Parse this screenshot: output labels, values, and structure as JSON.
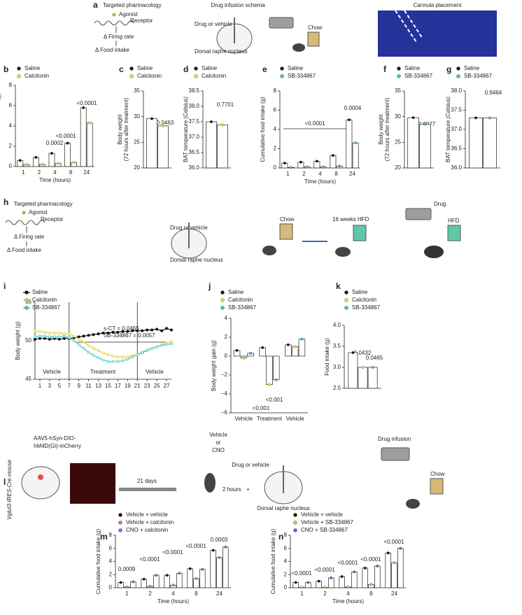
{
  "diagrams": {
    "a": {
      "label": "a",
      "pharmacology": {
        "title": "Targeted pharmacology",
        "agonist": "Agonist",
        "receptor": "Receptor",
        "firing": "Δ Firing rate",
        "food": "Δ Food intake"
      },
      "schema": {
        "title": "Drug infusion schema",
        "drug": "Drug or vehicle",
        "chow": "Chow",
        "region": "Dorsal raphe nucleus"
      },
      "cannula": "Cannula placement"
    },
    "h": {
      "label": "h",
      "pharmacology": {
        "title": "Targeted pharmacology",
        "agonist": "Agonist",
        "receptor": "Receptor",
        "firing": "Δ Firing rate",
        "food": "Δ Food intake"
      },
      "drug": "Drug or vehicle",
      "region": "Dorsal raphe nucleus",
      "chow": "Chow",
      "hfd_weeks": "16 weeks HFD",
      "drug2": "Drug",
      "hfd": "HFD"
    },
    "l": {
      "label": "l",
      "mouse": "Vglut3-IRES-Cre mouse",
      "virus": [
        "AAV5-hSyn-DIO-",
        "hM4D(Gi)-mCherry"
      ],
      "days": "21 days",
      "treatment": [
        "Vehicle",
        "or",
        "CNO"
      ],
      "wait": "2 hours",
      "plus": "+",
      "title": "Drug infusion",
      "drug": "Drug or vehicle",
      "chow": "Chow",
      "region": "Dorsal raphe nucleus"
    }
  },
  "chart_data": [
    {
      "type": "bar",
      "label": "b",
      "categories": [
        "1",
        "2",
        "4",
        "8",
        "24"
      ],
      "series": [
        {
          "name": "Saline",
          "color": "#111111",
          "values": [
            0.6,
            0.9,
            1.3,
            2.3,
            5.8
          ]
        },
        {
          "name": "Calcitonin",
          "color": "#f0e040",
          "values": [
            0.2,
            0.2,
            0.3,
            0.4,
            4.3
          ]
        }
      ],
      "ylim": [
        0,
        8
      ],
      "yticks": [
        0,
        2,
        4,
        6,
        8
      ],
      "ylabel": [
        "Cumulative food intake (g)"
      ],
      "xlabel": "Time (hours)",
      "annotations": [
        "0.0002",
        "<0.0001",
        "<0.0001"
      ]
    },
    {
      "type": "bar",
      "label": "c",
      "series": [
        {
          "name": "Saline",
          "color": "#111111",
          "values": [
            29.6
          ]
        },
        {
          "name": "Calcitonin",
          "color": "#f0e040",
          "values": [
            28.2
          ]
        }
      ],
      "ylim": [
        20,
        35
      ],
      "yticks": [
        20,
        25,
        30,
        35
      ],
      "ylabel": [
        "Body weight",
        "(72 hours after treatment)"
      ],
      "annotations": [
        "0.0463"
      ]
    },
    {
      "type": "bar",
      "label": "d",
      "series": [
        {
          "name": "Saline",
          "color": "#111111",
          "values": [
            37.5
          ]
        },
        {
          "name": "Calcitonin",
          "color": "#f0e040",
          "values": [
            37.4
          ]
        }
      ],
      "ylim": [
        36,
        38.5
      ],
      "yticks": [
        {
          "value": 36,
          "label": "36.0"
        },
        36.5,
        {
          "value": 37,
          "label": "37.0"
        },
        37.5,
        {
          "value": 38,
          "label": "38.0"
        },
        38.5
      ],
      "ylabel": [
        "BAT temperature (Celsius)"
      ],
      "annotations": [
        "0.7701"
      ]
    },
    {
      "type": "bar",
      "label": "e",
      "categories": [
        "1",
        "2",
        "4",
        "8",
        "24"
      ],
      "series": [
        {
          "name": "Saline",
          "color": "#111111",
          "values": [
            0.5,
            0.6,
            0.7,
            1.3,
            5.0
          ]
        },
        {
          "name": "SB-334867",
          "color": "#40c8c8",
          "values": [
            0.05,
            0.1,
            0.1,
            0.2,
            2.6
          ]
        }
      ],
      "ylim": [
        0,
        8
      ],
      "yticks": [
        0,
        2,
        4,
        6,
        8
      ],
      "ylabel": [
        "Cumulative food intake (g)"
      ],
      "xlabel": "Time (hours)",
      "annotations": [
        "<0.0001",
        "0.0004"
      ]
    },
    {
      "type": "bar",
      "label": "f",
      "series": [
        {
          "name": "Saline",
          "color": "#111111",
          "values": [
            29.8
          ]
        },
        {
          "name": "SB-334867",
          "color": "#40c8c8",
          "values": [
            28.5
          ]
        }
      ],
      "ylim": [
        20,
        35
      ],
      "yticks": [
        20,
        25,
        30,
        35
      ],
      "ylabel": [
        "Body weight",
        "(72 hours after treatment)"
      ],
      "annotations": [
        "0.0077"
      ]
    },
    {
      "type": "bar",
      "label": "g",
      "series": [
        {
          "name": "Saline",
          "color": "#111111",
          "values": [
            37.3
          ]
        },
        {
          "name": "SB-334867",
          "color": "#40c8c8",
          "values": [
            37.3
          ]
        }
      ],
      "ylim": [
        36,
        38
      ],
      "yticks": [
        {
          "value": 36,
          "label": "36.0"
        },
        36.5,
        {
          "value": 37,
          "label": "37.0"
        },
        37.5,
        {
          "value": 38,
          "label": "38.0"
        }
      ],
      "ylabel": [
        "BAT temperature (Celsius)"
      ],
      "annotations": [
        "0.9464"
      ]
    },
    {
      "type": "line",
      "label": "i",
      "x": [
        0,
        1,
        2,
        3,
        4,
        5,
        6,
        7,
        8,
        9,
        10,
        11,
        12,
        13,
        14,
        15,
        16,
        17,
        18,
        19,
        20,
        21,
        22,
        23,
        24,
        25,
        26,
        27,
        28
      ],
      "series": [
        {
          "name": "Saline",
          "color": "#111111",
          "values": [
            50.2,
            50.3,
            50.3,
            50.2,
            50.3,
            50.2,
            50.3,
            50.3,
            50.4,
            50.5,
            50.6,
            50.7,
            50.8,
            50.9,
            51.0,
            51.0,
            51.1,
            51.1,
            51.2,
            51.2,
            51.3,
            51.3,
            51.3,
            51.4,
            51.4,
            51.5,
            51.3,
            51.6,
            51.4
          ]
        },
        {
          "name": "Calcitonin",
          "color": "#e8d020",
          "values": [
            51.3,
            51.2,
            51.1,
            51.0,
            51.0,
            51.0,
            50.9,
            50.9,
            50.6,
            50.2,
            49.8,
            49.4,
            49.0,
            48.7,
            48.4,
            48.2,
            48.0,
            47.9,
            47.9,
            47.9,
            48.0,
            48.2,
            48.4,
            48.7,
            49.0,
            49.2,
            49.5,
            49.7,
            49.9
          ]
        },
        {
          "name": "SB-334867",
          "color": "#40c8c8",
          "values": [
            50.5,
            50.6,
            50.6,
            50.5,
            50.5,
            50.5,
            50.6,
            50.4,
            50.0,
            49.5,
            49.0,
            48.5,
            48.1,
            47.8,
            47.5,
            47.3,
            47.3,
            47.3,
            47.4,
            47.6,
            47.9,
            48.2,
            48.5,
            48.8,
            49.0,
            49.2,
            49.4,
            49.5,
            49.6
          ]
        }
      ],
      "xlim": [
        0,
        28
      ],
      "xticks": [
        1,
        3,
        5,
        7,
        9,
        11,
        13,
        15,
        17,
        19,
        21,
        23,
        25,
        27
      ],
      "ylim": [
        45,
        55
      ],
      "yticks": [
        45,
        50,
        55
      ],
      "ylabel": [
        "Body weight (g)"
      ],
      "annotations": [
        "s-CT = 0.0465",
        "SB-334867 = 0.0057",
        "Vehicle",
        "Treatment",
        "Vehicle"
      ]
    },
    {
      "type": "bar",
      "label": "j",
      "categories": [
        "Vehicle",
        "Treatment",
        "Vehicle"
      ],
      "series": [
        {
          "name": "Saline",
          "color": "#111111",
          "values": [
            0.6,
            0.9,
            1.2
          ]
        },
        {
          "name": "Calcitonin",
          "color": "#f0e040",
          "values": [
            -0.2,
            -3.0,
            1.0
          ]
        },
        {
          "name": "SB-334867",
          "color": "#40c8c8",
          "values": [
            0.3,
            -2.5,
            1.8
          ]
        }
      ],
      "ylim": [
        -6,
        4
      ],
      "yticks": [
        {
          "value": -6,
          "label": "−6"
        },
        {
          "value": -4,
          "label": "−4"
        },
        {
          "value": -2,
          "label": "−2"
        },
        0,
        2,
        4
      ],
      "ylabel": [
        "Body weight gain (g)"
      ],
      "annotations": [
        "<0.001",
        "<0.001"
      ]
    },
    {
      "type": "bar",
      "label": "k",
      "series": [
        {
          "name": "Saline",
          "color": "#111111",
          "values": [
            3.35
          ]
        },
        {
          "name": "Calcitonin",
          "color": "#f0e040",
          "values": [
            3.0
          ]
        },
        {
          "name": "SB-334867",
          "color": "#40c8c8",
          "values": [
            3.0
          ]
        }
      ],
      "ylim": [
        2.5,
        4.0
      ],
      "yticks": [
        2.5,
        {
          "value": 3,
          "label": "3.0"
        },
        3.5,
        {
          "value": 4,
          "label": "4.0"
        }
      ],
      "ylabel": [
        "Food intake (g)"
      ],
      "annotations": [
        "0.0432",
        "0.0465"
      ]
    },
    {
      "type": "bar",
      "label": "m",
      "categories": [
        "1",
        "2",
        "4",
        "8",
        "24"
      ],
      "series": [
        {
          "name": "Vehicle + vehicle",
          "color": "#111111",
          "values": [
            0.8,
            1.3,
            1.9,
            2.9,
            5.7
          ]
        },
        {
          "name": "Vehicle + calcitonin",
          "color": "#e08040",
          "values": [
            0.1,
            0.2,
            0.4,
            1.4,
            4.6
          ]
        },
        {
          "name": "CNO + calcitonin",
          "color": "#4090e0",
          "values": [
            0.9,
            1.9,
            2.2,
            2.8,
            6.2
          ]
        }
      ],
      "ylim": [
        0,
        8
      ],
      "yticks": [
        0,
        2,
        4,
        6,
        8
      ],
      "ylabel": [
        "Cumulative food intake (g)"
      ],
      "xlabel": "Time (hours)",
      "annotations": [
        "0.0009",
        "<0.0001",
        "<0.0001",
        "<0.0001",
        "0.0003"
      ]
    },
    {
      "type": "bar",
      "label": "n",
      "categories": [
        "1",
        "2",
        "4",
        "8",
        "24"
      ],
      "series": [
        {
          "name": "Vehicle + vehicle",
          "color": "#111111",
          "values": [
            0.8,
            1.0,
            1.7,
            3.0,
            5.3
          ]
        },
        {
          "name": "Vehicle + SB-334867",
          "color": "#a0d060",
          "values": [
            0.05,
            0.05,
            0.1,
            0.5,
            3.8
          ]
        },
        {
          "name": "CNO + SB-334867",
          "color": "#9050d0",
          "values": [
            0.8,
            1.5,
            2.4,
            3.3,
            6.0
          ]
        }
      ],
      "ylim": [
        0,
        8
      ],
      "yticks": [
        0,
        2,
        4,
        6,
        8
      ],
      "ylabel": [
        "Cumulative food intake (g)"
      ],
      "xlabel": "Time (hours)",
      "annotations": [
        "<0.0001",
        "<0.0001",
        "<0.0001",
        "<0.0001",
        "<0.0001"
      ]
    }
  ]
}
